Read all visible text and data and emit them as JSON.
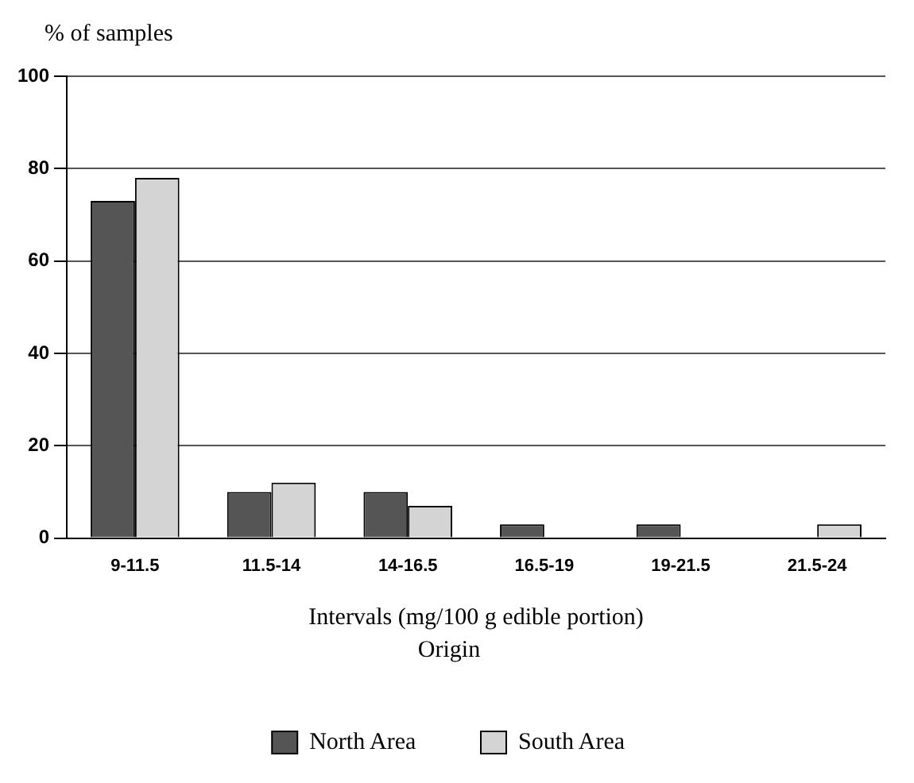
{
  "chart_data": {
    "type": "bar",
    "xlabel": "Intervals (mg/100 g edible portion)",
    "ylabel": "% of samples",
    "legend_title": "Origin",
    "categories": [
      "9-11.5",
      "11.5-14",
      "14-16.5",
      "16.5-19",
      "19-21.5",
      "21.5-24"
    ],
    "series": [
      {
        "name": "North Area",
        "color": "#555555",
        "values": [
          73,
          10,
          10,
          3,
          3,
          0
        ]
      },
      {
        "name": "South Area",
        "color": "#d4d4d4",
        "values": [
          78,
          12,
          7,
          0,
          0,
          3
        ]
      }
    ],
    "ylim": [
      0,
      100
    ],
    "yticks": [
      0,
      20,
      40,
      60,
      80,
      100
    ],
    "grid": "y",
    "legend": "bottom"
  }
}
